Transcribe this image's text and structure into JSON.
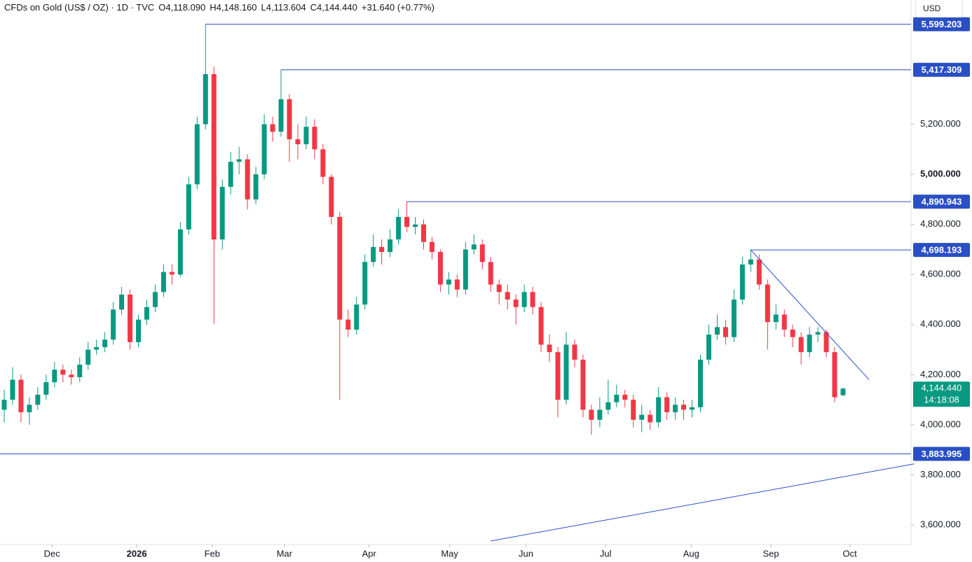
{
  "chart_data": {
    "type": "candlestick",
    "title": "CFDs on Gold (US$ / OZ) · 1D · TVC",
    "ohlc_labels": [
      "O4,118.090",
      "H4,148.160",
      "L4,113.604",
      "C4,144.440"
    ],
    "change_label": "+31.640 (+0.77%)",
    "currency": "USD",
    "up_color": "#089981",
    "down_color": "#f23645",
    "line_color": "#2a4fc4",
    "grid": false,
    "ylim": [
      3522,
      5696
    ],
    "yticks": [
      {
        "value": 3600,
        "label": "3,600.000"
      },
      {
        "value": 3800,
        "label": "3,800.000"
      },
      {
        "value": 4000,
        "label": "4,000.000"
      },
      {
        "value": 4200,
        "label": "4,200.000"
      },
      {
        "value": 4400,
        "label": "4,400.000"
      },
      {
        "value": 4600,
        "label": "4,600.000"
      },
      {
        "value": 4800,
        "label": "4,800.000"
      },
      {
        "value": 5000,
        "label": "5,000.000"
      },
      {
        "value": 5200,
        "label": "5,200.000"
      }
    ],
    "xticks": [
      {
        "value": 5.7,
        "label": "Dec"
      },
      {
        "value": 15.8,
        "label": "2026"
      },
      {
        "value": 24.8,
        "label": "Feb"
      },
      {
        "value": 33.4,
        "label": "Mar"
      },
      {
        "value": 43.5,
        "label": "Apr"
      },
      {
        "value": 53.1,
        "label": "May"
      },
      {
        "value": 62.2,
        "label": "Jun"
      },
      {
        "value": 71.7,
        "label": "Jul"
      },
      {
        "value": 81.9,
        "label": "Aug"
      },
      {
        "value": 91.4,
        "label": "Sep"
      },
      {
        "value": 100.8,
        "label": "Oct"
      }
    ],
    "open": [
      4060,
      4100,
      4180,
      4050,
      4080,
      4120,
      4170,
      4220,
      4200,
      4190,
      4240,
      4300,
      4310,
      4340,
      4460,
      4520,
      4330,
      4420,
      4470,
      4530,
      4610,
      4600,
      4780,
      4960,
      5200,
      5400,
      4740,
      4950,
      5050,
      5060,
      4900,
      5000,
      5200,
      5170,
      5300,
      5140,
      5120,
      5190,
      5100,
      4990,
      4830,
      4420,
      4380,
      4480,
      4650,
      4710,
      4690,
      4740,
      4830,
      4790,
      4800,
      4730,
      4690,
      4560,
      4580,
      4540,
      4700,
      4720,
      4650,
      4560,
      4530,
      4500,
      4470,
      4530,
      4470,
      4320,
      4290,
      4100,
      4320,
      4260,
      4060,
      4020,
      4060,
      4090,
      4120,
      4100,
      4020,
      4040,
      4010,
      4110,
      4050,
      4080,
      4060,
      4070,
      4260,
      4360,
      4390,
      4350,
      4500,
      4640,
      4660,
      4560,
      4410,
      4440,
      4380,
      4350,
      4290,
      4360,
      4370,
      4290,
      4118.09
    ],
    "high": [
      4140,
      4230,
      4200,
      4110,
      4150,
      4200,
      4250,
      4240,
      4220,
      4270,
      4330,
      4340,
      4370,
      4490,
      4550,
      4540,
      4440,
      4500,
      4560,
      4640,
      4640,
      4810,
      4990,
      5230,
      5599.203,
      5430,
      4980,
      5090,
      5110,
      5080,
      5030,
      5240,
      5230,
      5417.309,
      5320,
      5200,
      5230,
      5220,
      5120,
      5000,
      4850,
      4460,
      4510,
      4680,
      4760,
      4740,
      4780,
      4860,
      4890.943,
      4830,
      4820,
      4750,
      4700,
      4610,
      4600,
      4730,
      4760,
      4740,
      4670,
      4580,
      4560,
      4520,
      4560,
      4550,
      4490,
      4360,
      4310,
      4370,
      4340,
      4280,
      4080,
      4110,
      4180,
      4160,
      4140,
      4120,
      4080,
      4060,
      4150,
      4130,
      4110,
      4100,
      4100,
      4280,
      4400,
      4440,
      4420,
      4540,
      4670,
      4698.193,
      4680,
      4580,
      4480,
      4460,
      4400,
      4370,
      4390,
      4390,
      4380,
      4310,
      4148.16
    ],
    "low": [
      4010,
      4080,
      4010,
      4000,
      4060,
      4100,
      4150,
      4170,
      4160,
      4170,
      4220,
      4280,
      4290,
      4320,
      4440,
      4300,
      4310,
      4400,
      4450,
      4510,
      4560,
      4590,
      4760,
      4940,
      5180,
      4403,
      4700,
      4920,
      5000,
      4860,
      4880,
      4980,
      5130,
      5150,
      5050,
      5060,
      5100,
      5060,
      4960,
      4800,
      4100,
      4350,
      4360,
      4460,
      4630,
      4640,
      4670,
      4720,
      4770,
      4760,
      4700,
      4660,
      4530,
      4520,
      4510,
      4520,
      4680,
      4620,
      4530,
      4480,
      4460,
      4400,
      4450,
      4440,
      4290,
      4250,
      4030,
      4080,
      4230,
      4030,
      3960,
      3990,
      4040,
      4070,
      4070,
      3990,
      3970,
      3980,
      3990,
      4020,
      4020,
      4020,
      4030,
      4050,
      4240,
      4340,
      4320,
      4330,
      4480,
      4610,
      4540,
      4300,
      4380,
      4350,
      4310,
      4240,
      4270,
      4330,
      4270,
      4090,
      4113.604
    ],
    "close": [
      4100,
      4180,
      4050,
      4080,
      4120,
      4170,
      4220,
      4200,
      4190,
      4240,
      4300,
      4310,
      4340,
      4460,
      4520,
      4330,
      4420,
      4470,
      4530,
      4610,
      4600,
      4780,
      4960,
      5200,
      5400,
      4740,
      4950,
      5050,
      5060,
      4900,
      5000,
      5200,
      5170,
      5300,
      5140,
      5120,
      5190,
      5100,
      4990,
      4830,
      4420,
      4380,
      4480,
      4650,
      4710,
      4690,
      4740,
      4830,
      4790,
      4800,
      4730,
      4690,
      4560,
      4580,
      4540,
      4700,
      4720,
      4650,
      4560,
      4530,
      4500,
      4470,
      4530,
      4470,
      4320,
      4290,
      4100,
      4320,
      4260,
      4060,
      4020,
      4060,
      4090,
      4120,
      4100,
      4020,
      4040,
      4010,
      4110,
      4050,
      4080,
      4060,
      4070,
      4260,
      4360,
      4390,
      4350,
      4500,
      4640,
      4660,
      4560,
      4410,
      4440,
      4380,
      4350,
      4290,
      4360,
      4370,
      4290,
      4110,
      4144.44
    ],
    "last_price_label": "4,144.440",
    "countdown": "14:18:08",
    "levels": [
      {
        "value": 5599.203,
        "label": "5,599.203"
      },
      {
        "value": 5417.309,
        "label": "5,417.309"
      },
      {
        "value": 4890.943,
        "label": "4,890.943"
      },
      {
        "value": 4698.193,
        "label": "4,698.193"
      },
      {
        "value": 3883.995,
        "label": "3,883.995"
      }
    ],
    "trendlines": [
      {
        "start": [
          89,
          4698.193
        ],
        "end": [
          103.1,
          4180
        ]
      },
      {
        "start": [
          58,
          3536
        ],
        "end": [
          108.5,
          3844
        ]
      }
    ]
  }
}
